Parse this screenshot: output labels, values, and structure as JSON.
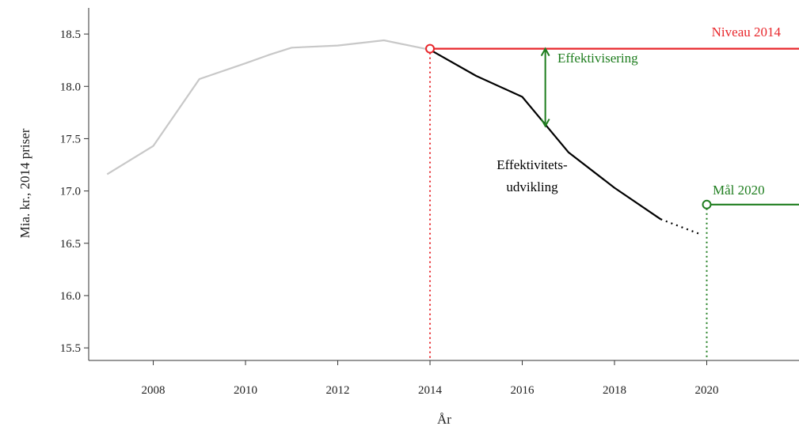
{
  "chart_data": {
    "type": "line",
    "xlabel": "År",
    "ylabel": "Mia. kr., 2014 priser",
    "xlim": [
      2006.6,
      2022
    ],
    "ylim": [
      15.38,
      18.75
    ],
    "x_ticks": [
      2008,
      2010,
      2012,
      2014,
      2016,
      2018,
      2020
    ],
    "y_ticks": [
      15.5,
      16.0,
      16.5,
      17.0,
      17.5,
      18.0,
      18.5
    ],
    "grid": false,
    "series": [
      {
        "key": "historical",
        "color": "#c8c8c8",
        "style": "solid",
        "points": [
          [
            2007,
            17.16
          ],
          [
            2008,
            17.43
          ],
          [
            2009,
            18.07
          ],
          [
            2010,
            18.22
          ],
          [
            2010.5,
            18.3
          ],
          [
            2011,
            18.37
          ],
          [
            2012,
            18.39
          ],
          [
            2013,
            18.44
          ],
          [
            2014,
            18.35
          ]
        ]
      },
      {
        "key": "projection",
        "color": "#000000",
        "style": "solid",
        "points": [
          [
            2014,
            18.35
          ],
          [
            2015,
            18.1
          ],
          [
            2016,
            17.9
          ],
          [
            2017,
            17.37
          ],
          [
            2018,
            17.03
          ],
          [
            2019,
            16.73
          ]
        ]
      },
      {
        "key": "projection-extension",
        "color": "#000000",
        "style": "dotted",
        "points": [
          [
            2019,
            16.73
          ],
          [
            2019.9,
            16.58
          ]
        ]
      },
      {
        "key": "level-2014",
        "color": "#e8262b",
        "style": "solid",
        "points": [
          [
            2014,
            18.36
          ],
          [
            2022,
            18.36
          ]
        ]
      },
      {
        "key": "target-2020",
        "color": "#1e7d1e",
        "style": "solid",
        "points": [
          [
            2020,
            16.87
          ],
          [
            2022,
            16.87
          ]
        ]
      }
    ],
    "markers": [
      {
        "key": "start-2014",
        "x": 2014,
        "y": 18.36,
        "color": "#e8262b",
        "drop_line_color": "#e8262b"
      },
      {
        "key": "target-2020",
        "x": 2020,
        "y": 16.87,
        "color": "#1e7d1e",
        "drop_line_color": "#1e7d1e"
      }
    ],
    "arrow": {
      "x": 2016.5,
      "y_from": 17.62,
      "y_to": 18.36,
      "color": "#1e7d1e"
    },
    "annotations": {
      "niveau": {
        "text": "Niveau 2014",
        "color": "#e8262b"
      },
      "effektivisering": {
        "text": "Effektivisering",
        "color": "#1e7d1e"
      },
      "udvikling_line1": {
        "text": "Effektivitets-",
        "color": "#000000"
      },
      "udvikling_line2": {
        "text": "udvikling",
        "color": "#000000"
      },
      "maal": {
        "text": "Mål 2020",
        "color": "#1e7d1e"
      }
    }
  }
}
